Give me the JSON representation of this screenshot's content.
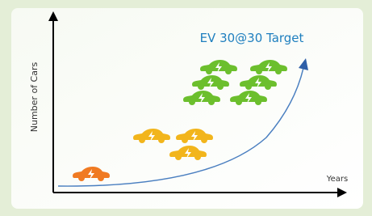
{
  "axes": {
    "y_label": "Number of Cars",
    "x_label": "Years"
  },
  "annotation": "EV 30@30 Target"
}
